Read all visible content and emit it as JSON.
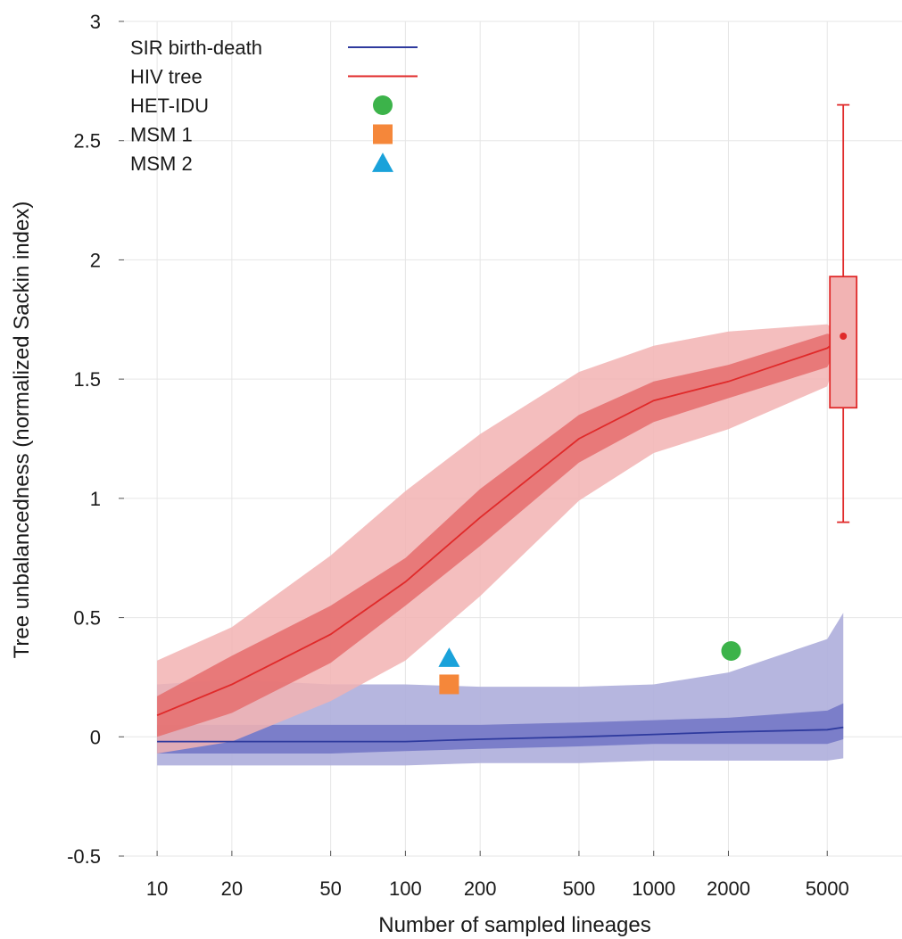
{
  "chart_data": {
    "type": "line",
    "xlabel": "Number of sampled lineages",
    "ylabel": "Tree unbalancedness (normalized Sackin index)",
    "x_scale": "log",
    "xlim": [
      7,
      10000
    ],
    "ylim": [
      -0.5,
      3
    ],
    "x_ticks": [
      10,
      20,
      50,
      100,
      200,
      500,
      1000,
      2000,
      5000
    ],
    "x_tick_labels": [
      "10",
      "20",
      "50",
      "100",
      "200",
      "500",
      "1000",
      "2000",
      "5000"
    ],
    "y_ticks": [
      -0.5,
      0,
      0.5,
      1,
      1.5,
      2,
      2.5,
      3
    ],
    "y_tick_labels": [
      "-0.5",
      "0",
      "0.5",
      "1",
      "1.5",
      "2",
      "2.5",
      "3"
    ],
    "grid": true,
    "legend_position": "top-left",
    "series": [
      {
        "name": "SIR birth-death",
        "kind": "line-with-bands",
        "color": "#2e3a9e",
        "inner_band_color": "#7478c6",
        "outer_band_color": "#aeaedc",
        "x": [
          10,
          20,
          50,
          100,
          200,
          500,
          1000,
          2000,
          5000,
          5800
        ],
        "median": [
          -0.02,
          -0.02,
          -0.02,
          -0.02,
          -0.01,
          0.0,
          0.01,
          0.02,
          0.03,
          0.04
        ],
        "inner_low": [
          -0.07,
          -0.07,
          -0.07,
          -0.06,
          -0.05,
          -0.04,
          -0.03,
          -0.03,
          -0.03,
          -0.01
        ],
        "inner_high": [
          0.05,
          0.05,
          0.05,
          0.05,
          0.05,
          0.06,
          0.07,
          0.08,
          0.11,
          0.14
        ],
        "outer_low": [
          -0.12,
          -0.12,
          -0.12,
          -0.12,
          -0.11,
          -0.11,
          -0.1,
          -0.1,
          -0.1,
          -0.09
        ],
        "outer_high": [
          0.22,
          0.24,
          0.22,
          0.22,
          0.21,
          0.21,
          0.22,
          0.27,
          0.41,
          0.52
        ]
      },
      {
        "name": "HIV tree",
        "kind": "line-with-bands",
        "color": "#e02a2a",
        "inner_band_color": "#e56d6d",
        "outer_band_color": "#f2b3b3",
        "x": [
          10,
          20,
          50,
          100,
          200,
          500,
          1000,
          2000,
          5000,
          5800
        ],
        "median": [
          0.09,
          0.22,
          0.43,
          0.65,
          0.92,
          1.25,
          1.41,
          1.49,
          1.63,
          1.68
        ],
        "inner_low": [
          0.0,
          0.1,
          0.31,
          0.55,
          0.8,
          1.15,
          1.32,
          1.42,
          1.55,
          1.68
        ],
        "inner_high": [
          0.17,
          0.34,
          0.55,
          0.75,
          1.04,
          1.35,
          1.49,
          1.56,
          1.69,
          1.68
        ],
        "outer_low": [
          -0.07,
          -0.02,
          0.15,
          0.32,
          0.59,
          0.99,
          1.19,
          1.29,
          1.47,
          1.68
        ],
        "outer_high": [
          0.32,
          0.46,
          0.76,
          1.03,
          1.27,
          1.53,
          1.64,
          1.7,
          1.73,
          1.68
        ]
      }
    ],
    "boxplot": {
      "series": "HIV tree",
      "x": 5800,
      "whisker_low": 0.9,
      "q1": 1.38,
      "median": 1.68,
      "q3": 1.93,
      "whisker_high": 2.65,
      "color": "#e02a2a",
      "fill": "#f2b3b3"
    },
    "points": [
      {
        "name": "HET-IDU",
        "marker": "circle",
        "color": "#3cb34a",
        "x": 2050,
        "y": 0.36
      },
      {
        "name": "MSM 1",
        "marker": "square",
        "color": "#f5873a",
        "x": 150,
        "y": 0.22
      },
      {
        "name": "MSM 2",
        "marker": "triangle",
        "color": "#1aa2da",
        "x": 150,
        "y": 0.33
      }
    ],
    "legend": [
      {
        "label": "SIR birth-death",
        "symbol": "line",
        "color": "#2e3a9e"
      },
      {
        "label": "HIV tree",
        "symbol": "line",
        "color": "#e02a2a"
      },
      {
        "label": "HET-IDU",
        "symbol": "circle",
        "color": "#3cb34a"
      },
      {
        "label": "MSM 1",
        "symbol": "square",
        "color": "#f5873a"
      },
      {
        "label": "MSM 2",
        "symbol": "triangle",
        "color": "#1aa2da"
      }
    ]
  }
}
